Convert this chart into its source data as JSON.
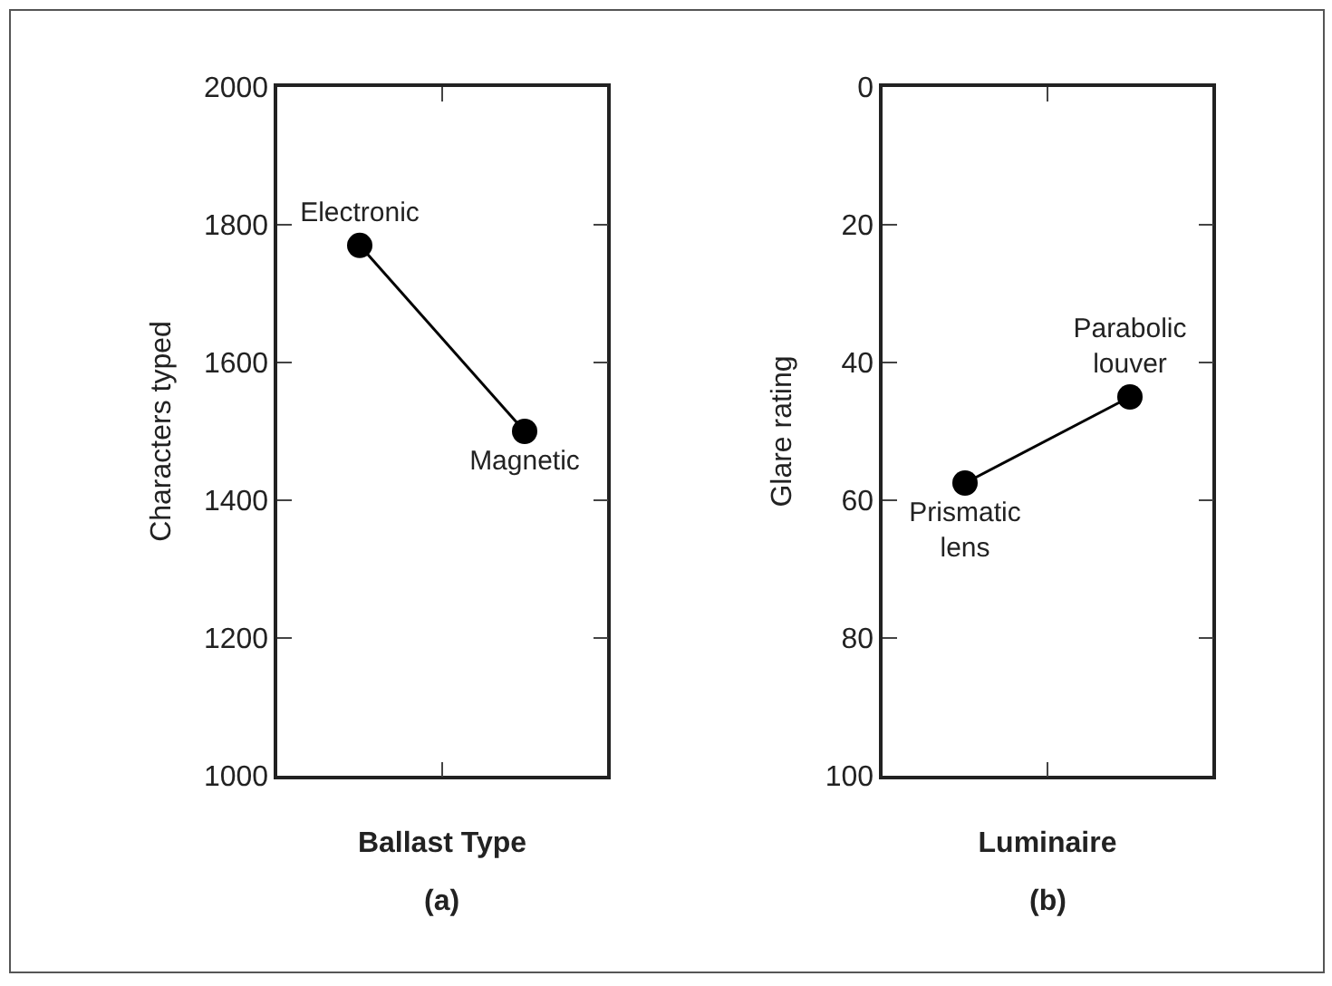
{
  "chart_data": [
    {
      "type": "line",
      "xlabel": "Ballast Type",
      "ylabel": "Characters typed",
      "annotations": [
        "(a)"
      ],
      "categories": [
        "Electronic",
        "Magnetic"
      ],
      "values": [
        1770,
        1500
      ],
      "color": "#000000",
      "marker": "circle",
      "line_style": "solid",
      "ylim": [
        1000,
        2000
      ],
      "yticks": [
        1000,
        1200,
        1400,
        1600,
        1800,
        2000
      ],
      "tick_labels": "y"
    },
    {
      "type": "line",
      "xlabel": "Luminaire",
      "ylabel": "Glare rating",
      "annotations": [
        "(b)"
      ],
      "categories": [
        "Prismatic lens",
        "Parabolic louver"
      ],
      "values": [
        57.5,
        45
      ],
      "color": "#000000",
      "marker": "circle",
      "line_style": "solid",
      "ylim": [
        100,
        0
      ],
      "yticks": [
        0,
        20,
        40,
        60,
        80,
        100
      ],
      "tick_labels": "y"
    }
  ]
}
